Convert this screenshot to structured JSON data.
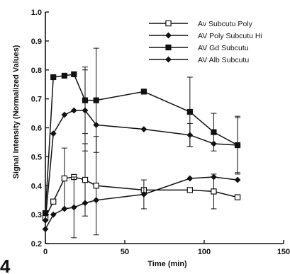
{
  "panel_label": "4",
  "chart_data": {
    "type": "line",
    "title": "",
    "xlabel": "Time (min)",
    "ylabel": "Signal Intensity (Normalized Values)",
    "xlim": [
      0,
      150
    ],
    "ylim": [
      0.2,
      1.0
    ],
    "xticks": [
      0,
      50,
      100,
      150
    ],
    "xtick_labels": [
      "0",
      "50",
      "100",
      "150"
    ],
    "yticks": [
      0.2,
      0.3,
      0.4,
      0.5,
      0.6,
      0.7,
      0.8,
      0.9,
      1.0
    ],
    "ytick_labels": [
      "0.2",
      "0.3",
      "0.4",
      "0.5",
      "0.6",
      "0.7",
      "0.8",
      "0.9",
      "1.0"
    ],
    "grid": false,
    "legend_position": "top-right",
    "series": [
      {
        "name": "Av Subcutu Poly",
        "marker": "square-open",
        "x": [
          0,
          5,
          12,
          18,
          25,
          32,
          62,
          91,
          106,
          121
        ],
        "y": [
          0.29,
          0.345,
          0.425,
          0.43,
          0.42,
          0.4,
          0.385,
          0.385,
          0.38,
          0.36
        ],
        "err": [
          0,
          0,
          0.105,
          0,
          0.125,
          0.17,
          0,
          0,
          0.06,
          0
        ]
      },
      {
        "name": "AV Poly Subcutu Hi",
        "marker": "diamond-filled",
        "x": [
          0,
          5,
          12,
          18,
          25,
          32,
          62,
          91,
          106,
          121
        ],
        "y": [
          0.25,
          0.3,
          0.32,
          0.325,
          0.34,
          0.35,
          0.37,
          0.425,
          0.43,
          0.42
        ],
        "err": [
          0,
          0,
          0,
          0.105,
          0,
          0,
          0.05,
          0,
          0,
          0
        ]
      },
      {
        "name": "AV Gd Subcutu",
        "marker": "square-filled",
        "x": [
          0,
          5,
          12,
          18,
          25,
          32,
          62,
          91,
          106,
          121
        ],
        "y": [
          0.305,
          0.775,
          0.78,
          0.785,
          0.695,
          0.695,
          0.725,
          0.655,
          0.585,
          0.54
        ],
        "err": [
          0,
          0,
          0,
          0,
          0.115,
          0.18,
          0,
          0.12,
          0.065,
          0.095
        ]
      },
      {
        "name": "AV Alb Subcutu",
        "marker": "diamond-filled",
        "x": [
          0,
          5,
          12,
          18,
          25,
          32,
          62,
          91,
          106,
          121
        ],
        "y": [
          0.28,
          0.58,
          0.645,
          0.66,
          0.66,
          0.61,
          0.595,
          0.575,
          0.545,
          0.54
        ],
        "err": [
          0,
          0,
          0,
          0,
          0.14,
          0,
          0,
          0.04,
          0,
          0.1
        ]
      }
    ]
  }
}
